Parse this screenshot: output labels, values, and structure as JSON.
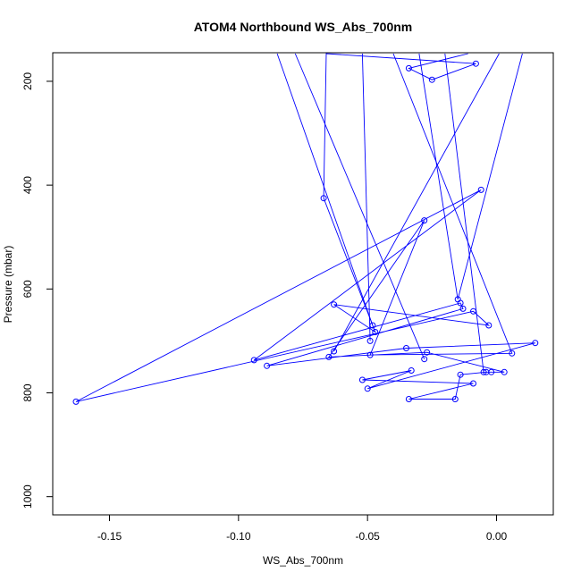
{
  "chart_data": {
    "type": "line",
    "title": "ATOM4 Northbound WS_Abs_700nm",
    "xlabel": "WS_Abs_700nm",
    "ylabel": "Pressure (mbar)",
    "xlim": [
      -0.172,
      0.022
    ],
    "ylim": [
      1035,
      145
    ],
    "y_reversed": true,
    "xticks": [
      -0.15,
      -0.1,
      -0.05,
      0.0
    ],
    "xtick_labels": [
      "-0.15",
      "-0.10",
      "-0.05",
      "0.00"
    ],
    "yticks": [
      200,
      400,
      600,
      800,
      1000
    ],
    "ytick_labels": [
      "200",
      "400",
      "600",
      "800",
      "1000"
    ],
    "grid": false,
    "color": "#0000ff",
    "marker": "open-circle",
    "series": [
      {
        "points": [
          [
            -0.011,
            145
          ],
          [
            -0.034,
            175
          ],
          [
            -0.025,
            197
          ],
          [
            -0.008,
            166
          ],
          [
            -0.066,
            145
          ],
          [
            -0.067,
            425
          ],
          [
            -0.047,
            683
          ],
          [
            -0.063,
            630
          ],
          [
            -0.003,
            670
          ],
          [
            -0.009,
            643
          ],
          [
            -0.163,
            817
          ],
          [
            -0.006,
            409
          ],
          [
            -0.094,
            737
          ],
          [
            -0.014,
            627
          ],
          [
            -0.013,
            638
          ],
          [
            -0.089,
            748
          ],
          [
            -0.035,
            714
          ],
          [
            0.015,
            704
          ],
          [
            -0.05,
            792
          ],
          [
            -0.033,
            757
          ],
          [
            -0.052,
            775
          ],
          [
            -0.009,
            782
          ],
          [
            -0.034,
            812
          ],
          [
            -0.016,
            812
          ],
          [
            -0.014,
            765
          ],
          [
            -0.004,
            760
          ],
          [
            -0.002,
            760
          ],
          [
            0.003,
            760
          ],
          [
            -0.027,
            722
          ],
          [
            -0.065,
            731
          ],
          [
            -0.028,
            468
          ],
          [
            -0.049,
            727
          ],
          [
            0.006,
            724
          ],
          [
            -0.04,
            145
          ]
        ]
      },
      {
        "points": [
          [
            -0.03,
            145
          ],
          [
            -0.015,
            620
          ],
          [
            0.01,
            145
          ]
        ]
      },
      {
        "points": [
          [
            -0.052,
            145
          ],
          [
            -0.049,
            700
          ]
        ]
      },
      {
        "points": [
          [
            -0.02,
            145
          ],
          [
            -0.005,
            760
          ]
        ]
      },
      {
        "points": [
          [
            -0.085,
            145
          ],
          [
            -0.048,
            670
          ]
        ]
      },
      {
        "points": [
          [
            0.001,
            145
          ],
          [
            -0.063,
            720
          ]
        ]
      },
      {
        "points": [
          [
            -0.078,
            145
          ],
          [
            -0.028,
            735
          ]
        ]
      }
    ]
  }
}
